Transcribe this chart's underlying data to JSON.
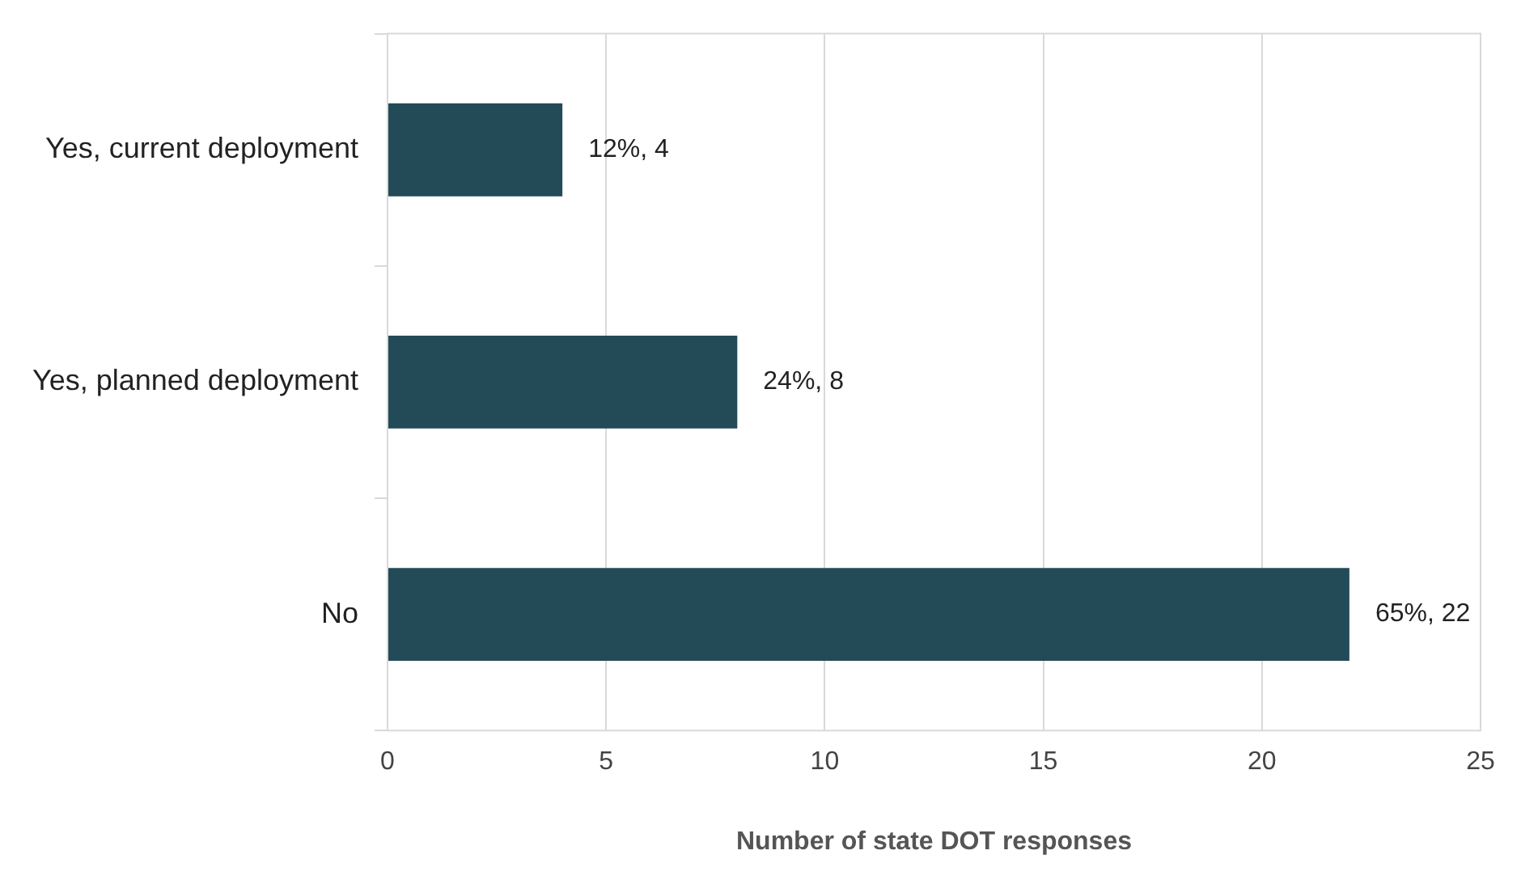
{
  "chart_data": {
    "type": "bar",
    "orientation": "horizontal",
    "xlabel": "Number of state DOT responses",
    "categories": [
      "Yes, current deployment",
      "Yes, planned deployment",
      "No"
    ],
    "values": [
      4,
      8,
      22
    ],
    "value_labels": [
      "12%, 4",
      "24%, 8",
      "65%, 22"
    ],
    "color": "#234a57",
    "xlim": [
      0,
      25
    ],
    "xticks": [
      0,
      5,
      10,
      15,
      20,
      25
    ],
    "grid": "x",
    "legend": false
  }
}
